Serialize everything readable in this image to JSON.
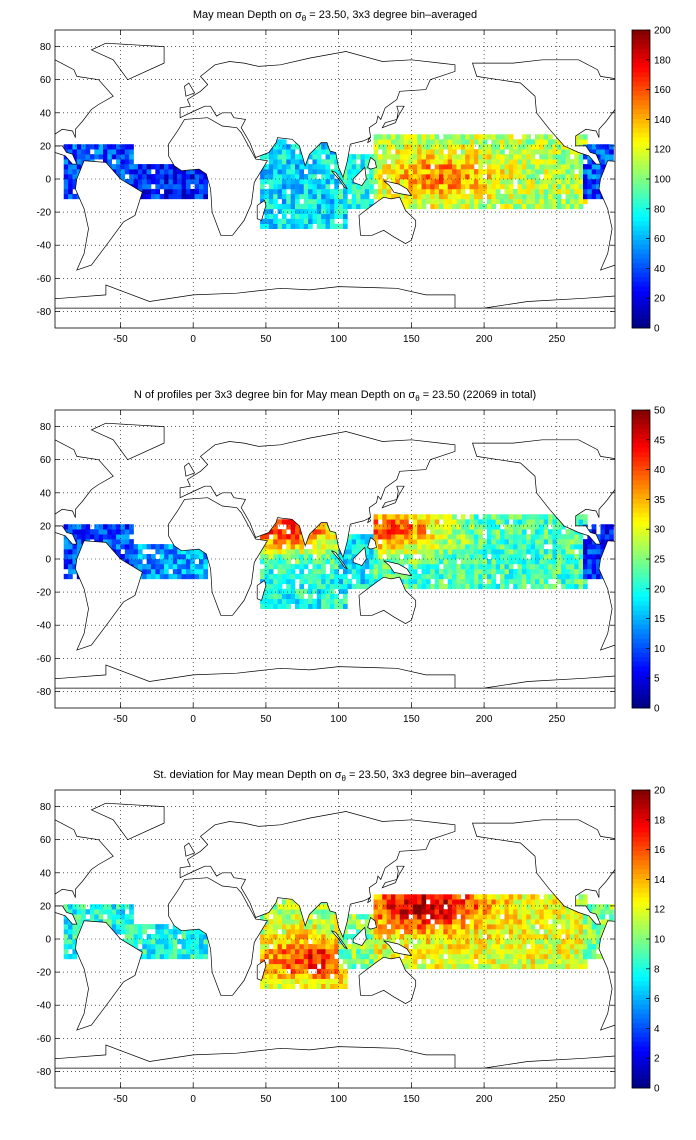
{
  "chart_data": [
    {
      "type": "heatmap",
      "title_pre": "May mean Depth on σ",
      "title_sub": "θ",
      "title_post": " = 23.50, 3x3 degree bin–averaged",
      "xlim": [
        -95,
        290
      ],
      "ylim": [
        -90,
        90
      ],
      "xticks": [
        -50,
        0,
        50,
        100,
        150,
        200,
        250
      ],
      "yticks": [
        -80,
        -60,
        -40,
        -20,
        0,
        20,
        40,
        60,
        80
      ],
      "colorbar": {
        "min": 0,
        "max": 200,
        "ticks": [
          0,
          20,
          40,
          60,
          80,
          100,
          120,
          140,
          160,
          180,
          200
        ],
        "colormap": "jet"
      },
      "grid": "dotted",
      "bin_size_deg": 3,
      "regions": [
        {
          "lon": [
            125,
            270
          ],
          "lat": [
            -18,
            28
          ],
          "value": 110,
          "peak": 150,
          "peak_at": [
            170,
            2
          ]
        },
        {
          "lon": [
            268,
            290
          ],
          "lat": [
            -12,
            22
          ],
          "value": 40
        },
        {
          "lon": [
            -90,
            -40
          ],
          "lat": [
            -12,
            22
          ],
          "value": 40
        },
        {
          "lon": [
            -40,
            10
          ],
          "lat": [
            -12,
            10
          ],
          "value": 30
        },
        {
          "lon": [
            45,
            105
          ],
          "lat": [
            -30,
            25
          ],
          "value": 70
        },
        {
          "lon": [
            100,
            125
          ],
          "lat": [
            -18,
            15
          ],
          "value": 80
        }
      ]
    },
    {
      "type": "heatmap",
      "title_pre": "N of profiles per 3x3 degree bin for May mean Depth on σ",
      "title_sub": "θ",
      "title_post": " = 23.50 (22069 in total)",
      "xlim": [
        -95,
        290
      ],
      "ylim": [
        -90,
        90
      ],
      "xticks": [
        -50,
        0,
        50,
        100,
        150,
        200,
        250
      ],
      "yticks": [
        -80,
        -60,
        -40,
        -20,
        0,
        20,
        40,
        60,
        80
      ],
      "colorbar": {
        "min": 0,
        "max": 50,
        "ticks": [
          0,
          5,
          10,
          15,
          20,
          25,
          30,
          35,
          40,
          45,
          50
        ],
        "colormap": "jet"
      },
      "grid": "dotted",
      "bin_size_deg": 3,
      "regions": [
        {
          "lon": [
            125,
            270
          ],
          "lat": [
            -18,
            28
          ],
          "value": 22,
          "peak": 40,
          "peak_at": [
            135,
            18
          ]
        },
        {
          "lon": [
            268,
            290
          ],
          "lat": [
            -12,
            22
          ],
          "value": 8
        },
        {
          "lon": [
            -90,
            -40
          ],
          "lat": [
            -12,
            22
          ],
          "value": 10
        },
        {
          "lon": [
            -40,
            10
          ],
          "lat": [
            -12,
            10
          ],
          "value": 14
        },
        {
          "lon": [
            45,
            105
          ],
          "lat": [
            -30,
            25
          ],
          "value": 20,
          "peak": 42,
          "peak_at": [
            65,
            18
          ]
        },
        {
          "lon": [
            100,
            125
          ],
          "lat": [
            -18,
            15
          ],
          "value": 18
        }
      ]
    },
    {
      "type": "heatmap",
      "title_pre": "St. deviation for May mean Depth on σ",
      "title_sub": "θ",
      "title_post": " = 23.50, 3x3 degree bin–averaged",
      "xlim": [
        -95,
        290
      ],
      "ylim": [
        -90,
        90
      ],
      "xticks": [
        -50,
        0,
        50,
        100,
        150,
        200,
        250
      ],
      "yticks": [
        -80,
        -60,
        -40,
        -20,
        0,
        20,
        40,
        60,
        80
      ],
      "colorbar": {
        "min": 0,
        "max": 20,
        "ticks": [
          0,
          2,
          4,
          6,
          8,
          10,
          12,
          14,
          16,
          18,
          20
        ],
        "colormap": "jet"
      },
      "grid": "dotted",
      "bin_size_deg": 3,
      "regions": [
        {
          "lon": [
            125,
            270
          ],
          "lat": [
            -18,
            28
          ],
          "value": 12,
          "peak": 19,
          "peak_at": [
            160,
            20
          ]
        },
        {
          "lon": [
            268,
            290
          ],
          "lat": [
            -12,
            22
          ],
          "value": 10
        },
        {
          "lon": [
            -90,
            -40
          ],
          "lat": [
            -12,
            22
          ],
          "value": 8
        },
        {
          "lon": [
            -40,
            10
          ],
          "lat": [
            -12,
            10
          ],
          "value": 8
        },
        {
          "lon": [
            45,
            105
          ],
          "lat": [
            -30,
            25
          ],
          "value": 11,
          "peak": 17,
          "peak_at": [
            85,
            -12
          ]
        },
        {
          "lon": [
            100,
            125
          ],
          "lat": [
            -18,
            15
          ],
          "value": 10
        }
      ]
    }
  ]
}
